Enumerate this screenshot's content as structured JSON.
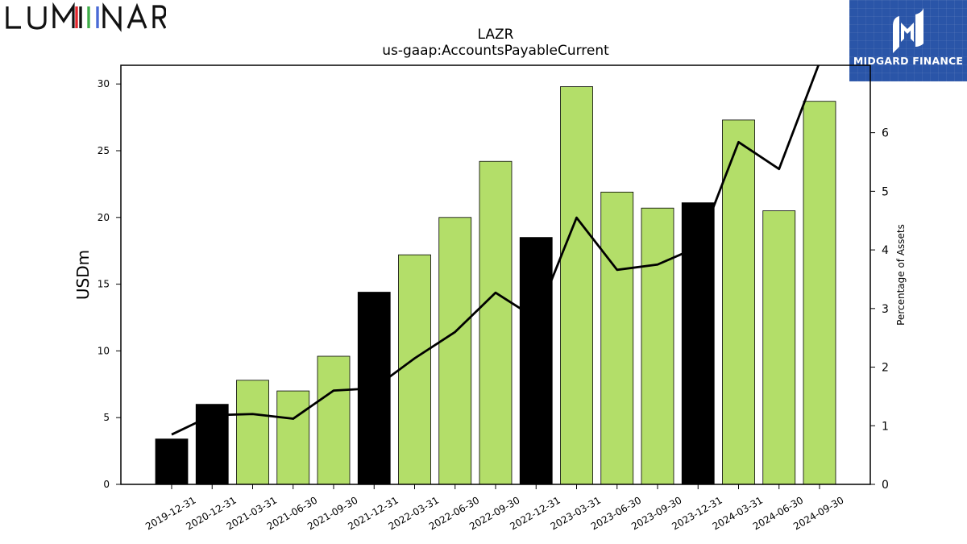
{
  "brand": {
    "company_logo_text": "LUMINAR",
    "publisher_logo_text": "MIDGARD FINANCE"
  },
  "colors": {
    "bar_light": "#b3de69",
    "bar_dark": "#000000",
    "line": "#000000",
    "publisher_bg": "#2a55a8",
    "luminar_i_red": "#e4262d",
    "luminar_i_green": "#3fae49",
    "luminar_i_blue": "#4a6bd6"
  },
  "chart_data": {
    "type": "bar",
    "title": "LAZR",
    "subtitle": "us-gaap:AccountsPayableCurrent",
    "ylabel": "USDm",
    "y2label": "Percentage of Assets",
    "ylim": [
      0,
      31.4
    ],
    "y2lim": [
      0,
      7.15
    ],
    "yticks": [
      0,
      5,
      10,
      15,
      20,
      25,
      30
    ],
    "y2ticks": [
      0,
      1,
      2,
      3,
      4,
      5,
      6
    ],
    "categories": [
      "2019-12-31",
      "2020-12-31",
      "2021-03-31",
      "2021-06-30",
      "2021-09-30",
      "2021-12-31",
      "2022-03-31",
      "2022-06-30",
      "2022-09-30",
      "2022-12-31",
      "2023-03-31",
      "2023-06-30",
      "2023-09-30",
      "2023-12-31",
      "2024-03-31",
      "2024-06-30",
      "2024-09-30"
    ],
    "series": [
      {
        "type": "bar",
        "axis": "left",
        "values": [
          3.4,
          6.0,
          7.8,
          7.0,
          9.6,
          14.4,
          17.2,
          20.0,
          24.2,
          18.5,
          29.8,
          21.9,
          20.7,
          21.1,
          27.3,
          20.5,
          28.7
        ],
        "annual": [
          true,
          true,
          false,
          false,
          false,
          true,
          false,
          false,
          false,
          true,
          false,
          false,
          false,
          true,
          false,
          false,
          false
        ]
      },
      {
        "type": "line",
        "axis": "right",
        "values": [
          0.85,
          1.18,
          1.2,
          1.12,
          1.6,
          1.64,
          2.15,
          2.6,
          3.27,
          2.83,
          4.55,
          3.66,
          3.75,
          4.05,
          5.84,
          5.38,
          7.2
        ]
      }
    ],
    "grid": false
  }
}
